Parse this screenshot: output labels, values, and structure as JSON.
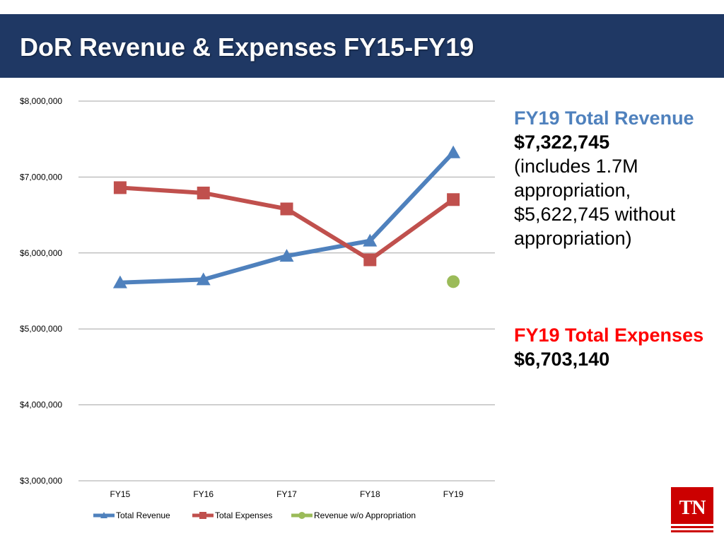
{
  "header": {
    "title": "DoR Revenue & Expenses FY15-FY19"
  },
  "colors": {
    "header_bg": "#1f3864",
    "revenue": "#4f81bd",
    "expenses": "#c0504d",
    "no_appropriation": "#9bbb59",
    "revenue_note": "#4f81bd",
    "expenses_note": "#ff0000",
    "logo_bg": "#cc0000"
  },
  "notes": {
    "revenue": {
      "heading": "FY19 Total Revenue",
      "amount": "$7,322,745",
      "detail": "(includes 1.7M appropriation, $5,622,745 without appropriation)"
    },
    "expenses": {
      "heading": "FY19 Total Expenses",
      "amount": "$6,703,140"
    }
  },
  "logo": {
    "text": "TN",
    "icon": "tennessee-logo"
  },
  "chart_data": {
    "type": "line",
    "title": "",
    "xlabel": "",
    "ylabel": "",
    "categories": [
      "FY15",
      "FY16",
      "FY17",
      "FY18",
      "FY19"
    ],
    "ylim": [
      3000000,
      8000000
    ],
    "yticks": [
      3000000,
      4000000,
      5000000,
      6000000,
      7000000,
      8000000
    ],
    "ytick_labels": [
      "$3,000,000",
      "$4,000,000",
      "$5,000,000",
      "$6,000,000",
      "$7,000,000",
      "$8,000,000"
    ],
    "grid": true,
    "legend_position": "bottom",
    "series": [
      {
        "name": "Total Revenue",
        "marker": "triangle",
        "color": "#4f81bd",
        "values": [
          5610000,
          5650000,
          5960000,
          6160000,
          7322745
        ]
      },
      {
        "name": "Total Expenses",
        "marker": "square",
        "color": "#c0504d",
        "values": [
          6860000,
          6790000,
          6580000,
          5910000,
          6703140
        ]
      },
      {
        "name": "Revenue w/o Appropriation",
        "marker": "circle",
        "color": "#9bbb59",
        "values": [
          null,
          null,
          null,
          null,
          5622745
        ]
      }
    ]
  }
}
